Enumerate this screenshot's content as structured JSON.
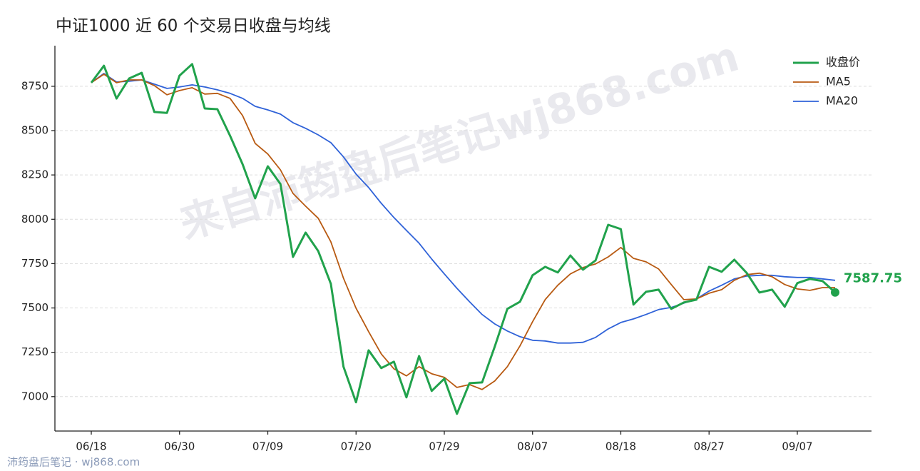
{
  "chart_data": {
    "type": "line",
    "title": "中证1000 近 60 个交易日收盘与均线",
    "watermark": "来自沛筠盘后笔记wj868.com",
    "footer": "沛筠盘后笔记 · wj868.com",
    "categories": [
      "06/18",
      null,
      null,
      null,
      null,
      null,
      null,
      "06/30",
      null,
      null,
      null,
      null,
      null,
      null,
      "07/09",
      null,
      null,
      null,
      null,
      null,
      null,
      "07/20",
      null,
      null,
      null,
      null,
      null,
      null,
      "07/29",
      null,
      null,
      null,
      null,
      null,
      null,
      "08/07",
      null,
      null,
      null,
      null,
      null,
      null,
      "08/18",
      null,
      null,
      null,
      null,
      null,
      null,
      "08/27",
      null,
      null,
      null,
      null,
      null,
      null,
      "09/07",
      null,
      null,
      null
    ],
    "series": [
      {
        "name": "收盘价",
        "color": "#21a24c",
        "width": 3,
        "values": [
          8770,
          8866,
          8681,
          8794,
          8826,
          8605,
          8600,
          8810,
          8875,
          8625,
          8621,
          8472,
          8311,
          8118,
          8299,
          8199,
          7788,
          7925,
          7821,
          7636,
          7169,
          6968,
          7261,
          7161,
          7197,
          6996,
          7229,
          7032,
          7101,
          6903,
          7076,
          7080,
          7282,
          7495,
          7535,
          7684,
          7732,
          7700,
          7796,
          7716,
          7768,
          7969,
          7945,
          7519,
          7591,
          7603,
          7495,
          7531,
          7547,
          7732,
          7704,
          7772,
          7696,
          7587,
          7603,
          7507,
          7640,
          7664,
          7652,
          7587.75
        ]
      },
      {
        "name": "MA5",
        "color": "#b85a12",
        "width": 1.8,
        "values": [
          8770,
          8818,
          8770,
          8786,
          8786,
          8754,
          8702,
          8726,
          8742,
          8706,
          8710,
          8682,
          8585,
          8428,
          8368,
          8279,
          8146,
          8074,
          8006,
          7873,
          7668,
          7499,
          7366,
          7241,
          7157,
          7117,
          7169,
          7129,
          7109,
          7052,
          7068,
          7040,
          7088,
          7169,
          7286,
          7422,
          7547,
          7628,
          7692,
          7728,
          7748,
          7788,
          7841,
          7780,
          7760,
          7720,
          7632,
          7547,
          7551,
          7583,
          7603,
          7656,
          7688,
          7696,
          7676,
          7632,
          7607,
          7599,
          7615,
          7615
        ]
      },
      {
        "name": "MA20",
        "color": "#2f62d8",
        "width": 1.8,
        "values": [
          8770,
          8822,
          8774,
          8778,
          8786,
          8762,
          8738,
          8746,
          8758,
          8746,
          8730,
          8710,
          8682,
          8637,
          8617,
          8593,
          8545,
          8513,
          8476,
          8432,
          8352,
          8255,
          8179,
          8090,
          8010,
          7937,
          7865,
          7776,
          7692,
          7611,
          7535,
          7463,
          7410,
          7370,
          7338,
          7318,
          7314,
          7302,
          7302,
          7306,
          7334,
          7382,
          7418,
          7438,
          7463,
          7491,
          7503,
          7527,
          7551,
          7595,
          7628,
          7664,
          7680,
          7684,
          7684,
          7676,
          7672,
          7672,
          7664,
          7656
        ]
      }
    ],
    "ylim": [
      6806,
      8979
    ],
    "yticks": [
      7000,
      7250,
      7500,
      7750,
      8000,
      8250,
      8500,
      8750
    ],
    "grid": true,
    "legend": "upper right"
  }
}
